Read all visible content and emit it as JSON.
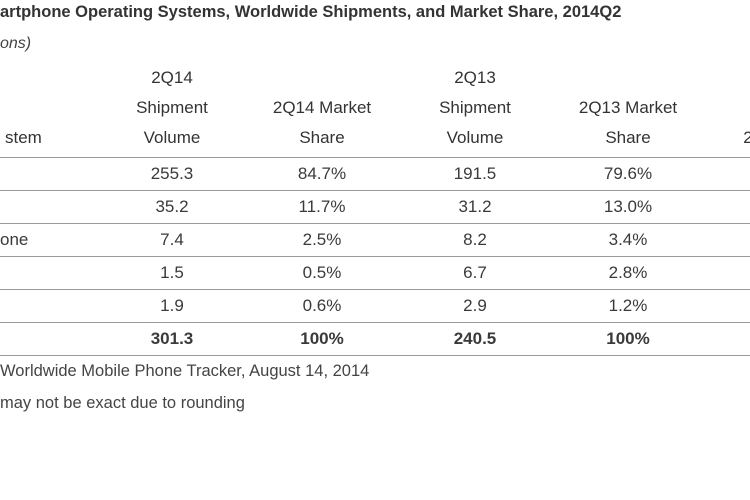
{
  "header": {
    "title": "artphone Operating Systems, Worldwide Shipments, and Market Share, 2014Q2",
    "subtitle": "ons)"
  },
  "table": {
    "columns": [
      "stem",
      "2Q14 Shipment Volume",
      "2Q14 Market Share",
      "2Q13 Shipment Volume",
      "2Q13 Market Share",
      "2"
    ],
    "rows": [
      {
        "cells": [
          "255.3",
          "84.7%",
          "191.5",
          "79.6%"
        ]
      },
      {
        "cells": [
          "35.2",
          "11.7%",
          "31.2",
          "13.0%"
        ]
      },
      {
        "label": "one",
        "cells": [
          "7.4",
          "2.5%",
          "8.2",
          "3.4%"
        ]
      },
      {
        "cells": [
          "1.5",
          "0.5%",
          "6.7",
          "2.8%"
        ]
      },
      {
        "cells": [
          "1.9",
          "0.6%",
          "2.9",
          "1.2%"
        ]
      }
    ],
    "total": [
      "301.3",
      "100%",
      "240.5",
      "100%"
    ]
  },
  "footer": {
    "source": "Worldwide Mobile Phone Tracker, August 14, 2014",
    "note": "may not be exact due to rounding"
  }
}
